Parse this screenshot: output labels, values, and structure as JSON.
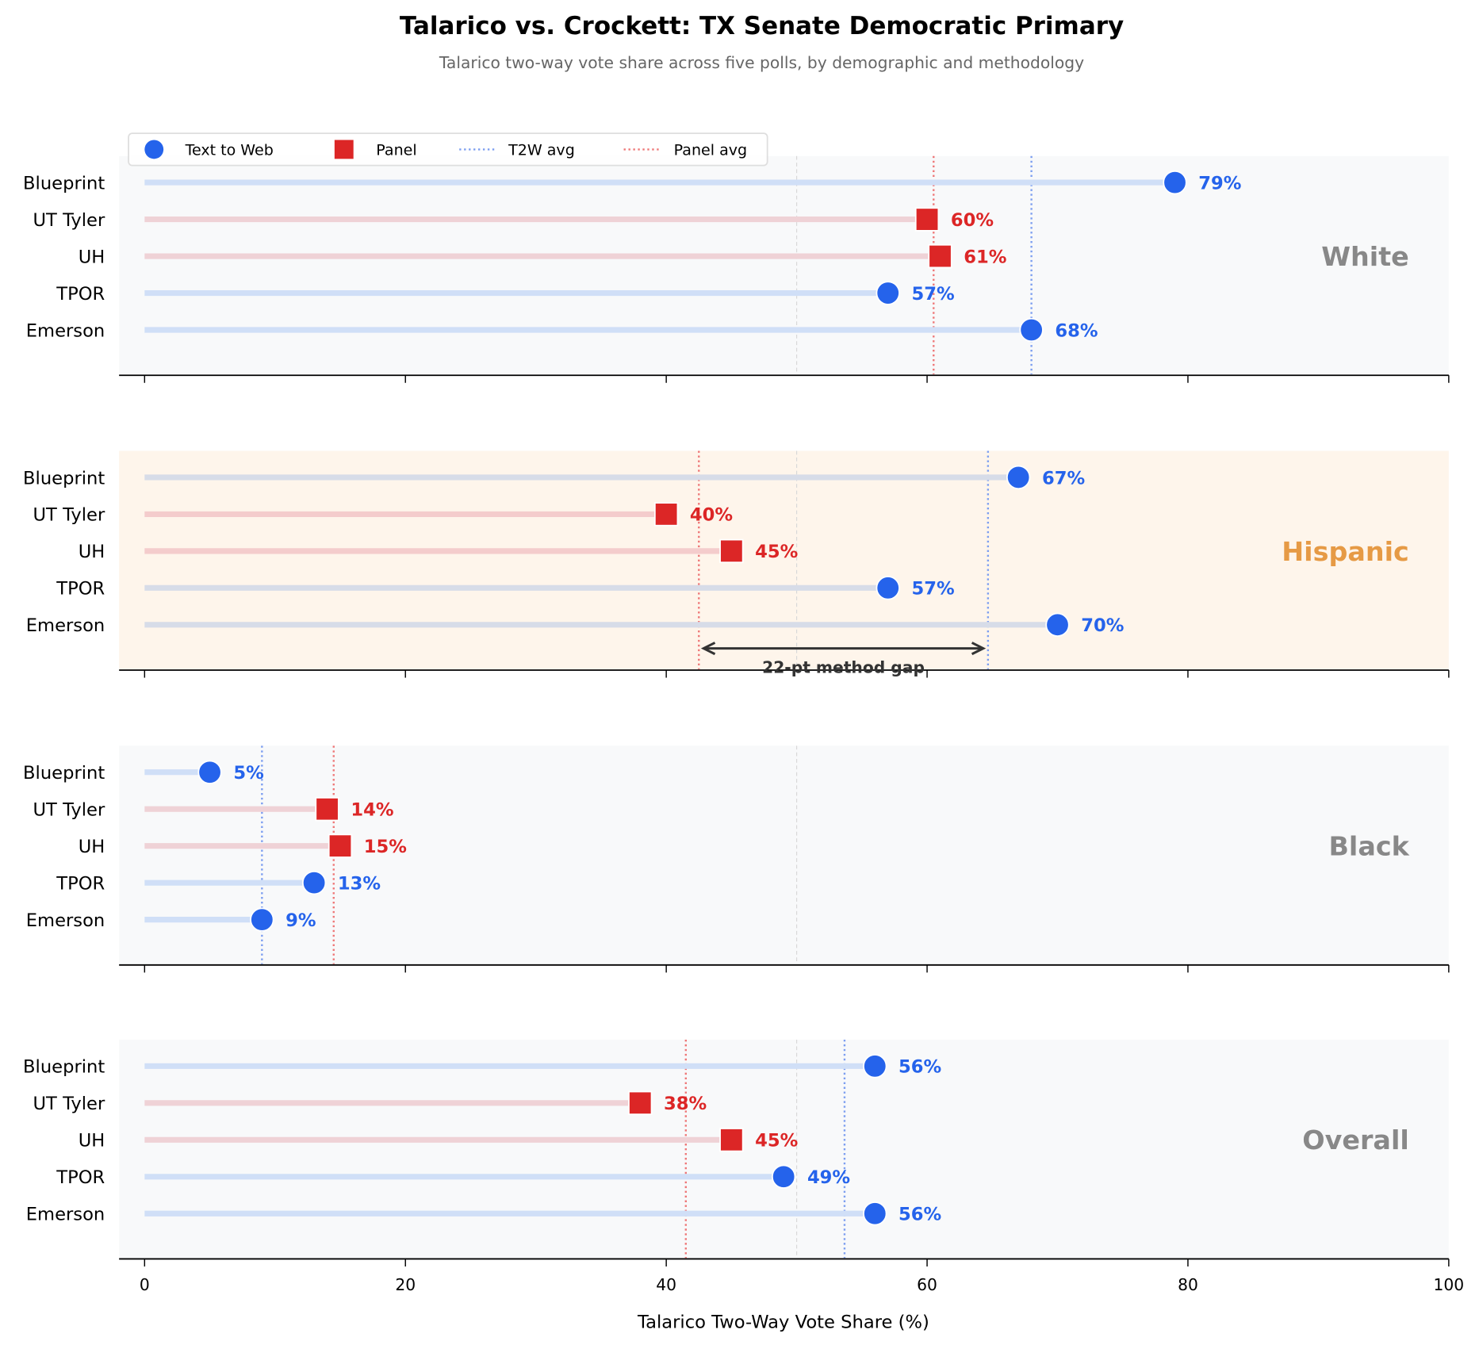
{
  "chart_data": {
    "type": "dot",
    "title": "Talarico vs. Crockett: TX Senate Democratic Primary",
    "subtitle": "Talarico two-way vote share across five polls, by demographic and methodology",
    "xlabel": "Talarico Two-Way Vote Share (%)",
    "xlim": [
      0,
      100
    ],
    "xticks": [
      "0",
      "20",
      "40",
      "60",
      "80",
      "100"
    ],
    "reference_line": 50,
    "legend": {
      "placement": "top-left",
      "entries": [
        "Text to Web",
        "Panel",
        "T2W avg",
        "Panel avg"
      ]
    },
    "colors": {
      "t2w": "#2563eb",
      "panel": "#dc2626",
      "t2w_avg": "#7c9ef0",
      "panel_avg": "#ee7777"
    },
    "polls": [
      "Blueprint",
      "UT Tyler",
      "UH",
      "TPOR",
      "Emerson"
    ],
    "methods": [
      "t2w",
      "panel",
      "panel",
      "t2w",
      "t2w"
    ],
    "panels": [
      {
        "group": "White",
        "values": [
          79,
          60,
          61,
          57,
          68
        ],
        "labels": [
          "79%",
          "60%",
          "61%",
          "57%",
          "68%"
        ],
        "t2w_avg": 68,
        "panel_avg": 60.5,
        "highlight": false
      },
      {
        "group": "Hispanic",
        "values": [
          67,
          40,
          45,
          57,
          70
        ],
        "labels": [
          "67%",
          "40%",
          "45%",
          "57%",
          "70%"
        ],
        "t2w_avg": 64.67,
        "panel_avg": 42.5,
        "highlight": true,
        "annotation": "22-pt method gap"
      },
      {
        "group": "Black",
        "values": [
          5,
          14,
          15,
          13,
          9
        ],
        "labels": [
          "5%",
          "14%",
          "15%",
          "13%",
          "9%"
        ],
        "t2w_avg": 9,
        "panel_avg": 14.5,
        "highlight": false
      },
      {
        "group": "Overall",
        "values": [
          56,
          38,
          45,
          49,
          56
        ],
        "labels": [
          "56%",
          "38%",
          "45%",
          "49%",
          "56%"
        ],
        "t2w_avg": 53.67,
        "panel_avg": 41.5,
        "highlight": false
      }
    ]
  }
}
